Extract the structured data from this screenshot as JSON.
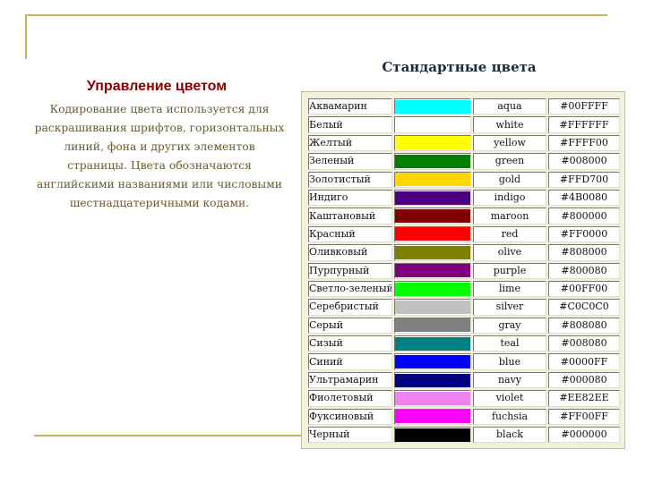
{
  "left": {
    "title": "Управление цветом",
    "body": "Кодирование цвета используется для раскрашивания шрифтов, горизонтальных линий, фона и других элементов страницы. Цвета обозначаются английскими названиями или числовыми шестнадцатеричными кодами."
  },
  "right": {
    "title": "Стандартные цвета"
  },
  "theme": {
    "frame": "#c9b25a",
    "title_color": "#8b0000",
    "body_color": "#6a5b2b"
  },
  "colors": [
    {
      "ru": "Аквамарин",
      "en": "aqua",
      "hex": "#00FFFF",
      "swatch": "#00FFFF"
    },
    {
      "ru": "Белый",
      "en": "white",
      "hex": "#FFFFFF",
      "swatch": "#FFFFFF"
    },
    {
      "ru": "Желтый",
      "en": "yellow",
      "hex": "#FFFF00",
      "swatch": "#FFFF00"
    },
    {
      "ru": "Зеленый",
      "en": "green",
      "hex": "#008000",
      "swatch": "#008000"
    },
    {
      "ru": "Золотистый",
      "en": "gold",
      "hex": "#FFD700",
      "swatch": "#FFD700"
    },
    {
      "ru": "Индиго",
      "en": "indigo",
      "hex": "#4B0080",
      "swatch": "#4B0080"
    },
    {
      "ru": "Каштановый",
      "en": "maroon",
      "hex": "#800000",
      "swatch": "#800000"
    },
    {
      "ru": "Красный",
      "en": "red",
      "hex": "#FF0000",
      "swatch": "#FF0000"
    },
    {
      "ru": "Оливковый",
      "en": "olive",
      "hex": "#808000",
      "swatch": "#808000"
    },
    {
      "ru": "Пурпурный",
      "en": "purple",
      "hex": "#800080",
      "swatch": "#800080"
    },
    {
      "ru": "Светло-зеленый",
      "en": "lime",
      "hex": "#00FF00",
      "swatch": "#00FF00"
    },
    {
      "ru": "Серебристый",
      "en": "silver",
      "hex": "#C0C0C0",
      "swatch": "#C0C0C0"
    },
    {
      "ru": "Серый",
      "en": "gray",
      "hex": "#808080",
      "swatch": "#808080"
    },
    {
      "ru": "Сизый",
      "en": "teal",
      "hex": "#008080",
      "swatch": "#008080"
    },
    {
      "ru": "Синий",
      "en": "blue",
      "hex": "#0000FF",
      "swatch": "#0000FF"
    },
    {
      "ru": "Ультрамарин",
      "en": "navy",
      "hex": "#000080",
      "swatch": "#000080"
    },
    {
      "ru": "Фиолетовый",
      "en": "violet",
      "hex": "#EE82EE",
      "swatch": "#EE82EE"
    },
    {
      "ru": "Фуксиновый",
      "en": "fuchsia",
      "hex": "#FF00FF",
      "swatch": "#FF00FF"
    },
    {
      "ru": "Черный",
      "en": "black",
      "hex": "#000000",
      "swatch": "#000000"
    }
  ]
}
